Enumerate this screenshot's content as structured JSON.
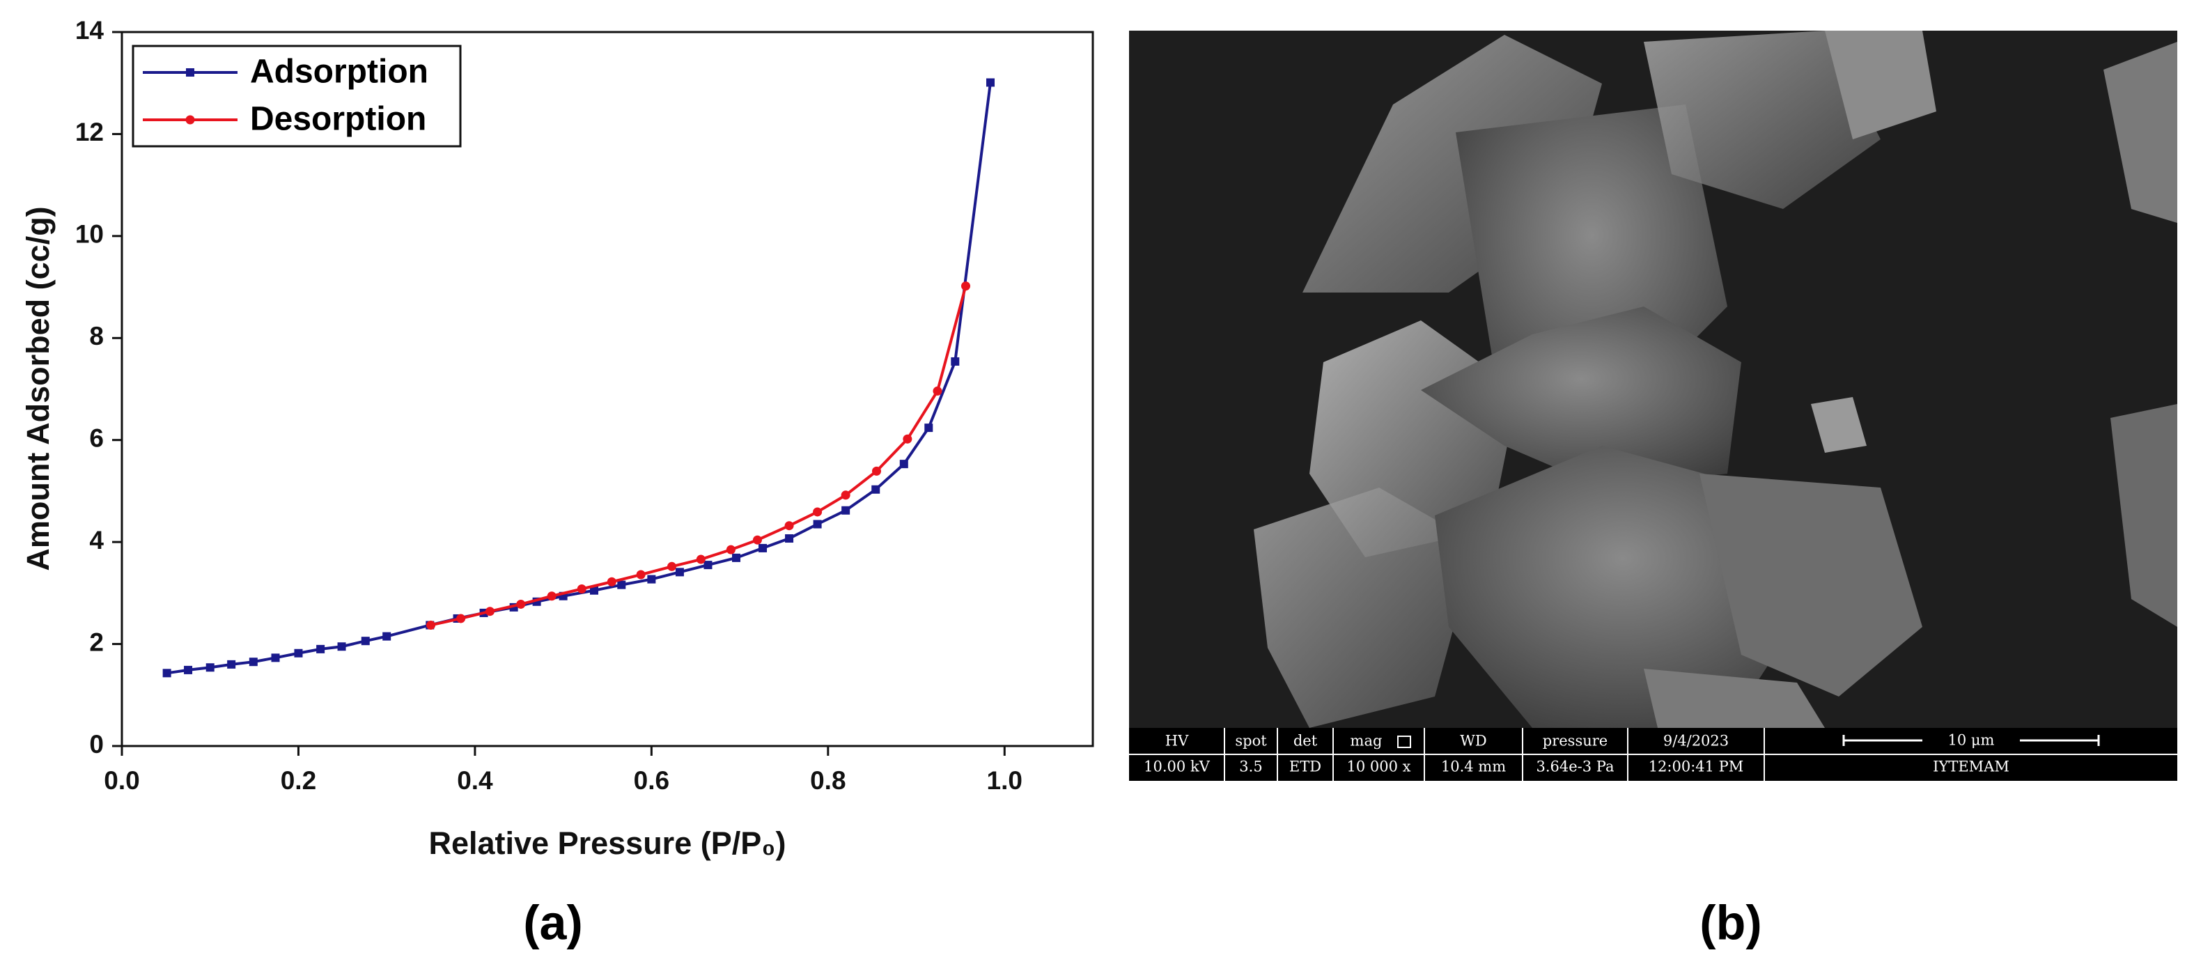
{
  "chart_data": {
    "type": "line",
    "x_label": "Relative Pressure (P/P₀)",
    "y_label": "Amount Adsorbed (cc/g)",
    "xlim": [
      0,
      1.1
    ],
    "ylim": [
      0,
      14
    ],
    "xticks": [
      {
        "value": 0,
        "label": "0.0"
      },
      0.2,
      0.4,
      0.6,
      0.8,
      {
        "value": 1,
        "label": "1.0"
      }
    ],
    "yticks": [
      0,
      2,
      4,
      6,
      8,
      10,
      12,
      14
    ],
    "legend": "upper left",
    "series": [
      {
        "name": "Adsorption",
        "color": "#1a1a8c",
        "marker": "square",
        "x": [
          0.051,
          0.075,
          0.1,
          0.124,
          0.149,
          0.174,
          0.2,
          0.225,
          0.249,
          0.276,
          0.3,
          0.349,
          0.38,
          0.41,
          0.444,
          0.47,
          0.5,
          0.535,
          0.566,
          0.6,
          0.632,
          0.664,
          0.696,
          0.726,
          0.756,
          0.788,
          0.82,
          0.854,
          0.886,
          0.914,
          0.944,
          0.984
        ],
        "values": [
          1.43,
          1.49,
          1.54,
          1.6,
          1.65,
          1.73,
          1.82,
          1.9,
          1.95,
          2.06,
          2.15,
          2.37,
          2.5,
          2.61,
          2.72,
          2.83,
          2.94,
          3.05,
          3.16,
          3.27,
          3.41,
          3.55,
          3.69,
          3.88,
          4.07,
          4.35,
          4.62,
          5.03,
          5.53,
          6.24,
          7.54,
          13.01
        ]
      },
      {
        "name": "Desorption",
        "color": "#e8141e",
        "marker": "circle",
        "x": [
          0.35,
          0.384,
          0.417,
          0.452,
          0.487,
          0.521,
          0.555,
          0.588,
          0.623,
          0.656,
          0.69,
          0.72,
          0.756,
          0.788,
          0.82,
          0.855,
          0.89,
          0.924,
          0.956
        ],
        "values": [
          2.37,
          2.5,
          2.64,
          2.78,
          2.94,
          3.08,
          3.22,
          3.36,
          3.52,
          3.66,
          3.85,
          4.04,
          4.32,
          4.59,
          4.92,
          5.39,
          6.02,
          6.96,
          9.02
        ]
      }
    ]
  },
  "panel_labels": [
    "(a)",
    "(b)"
  ],
  "sem_info": {
    "columns": [
      {
        "header": "HV",
        "value": "10.00 kV"
      },
      {
        "header": "spot",
        "value": "3.5"
      },
      {
        "header": "det",
        "value": "ETD"
      },
      {
        "header": "mag",
        "value": "10 000 x"
      },
      {
        "header": "WD",
        "value": "10.4 mm"
      },
      {
        "header": "pressure",
        "value": "3.64e-3 Pa"
      },
      {
        "header": "9/4/2023",
        "value": "12:00:41 PM"
      }
    ],
    "scale_bar": "10 μm",
    "lab": "IYTEMAM"
  }
}
